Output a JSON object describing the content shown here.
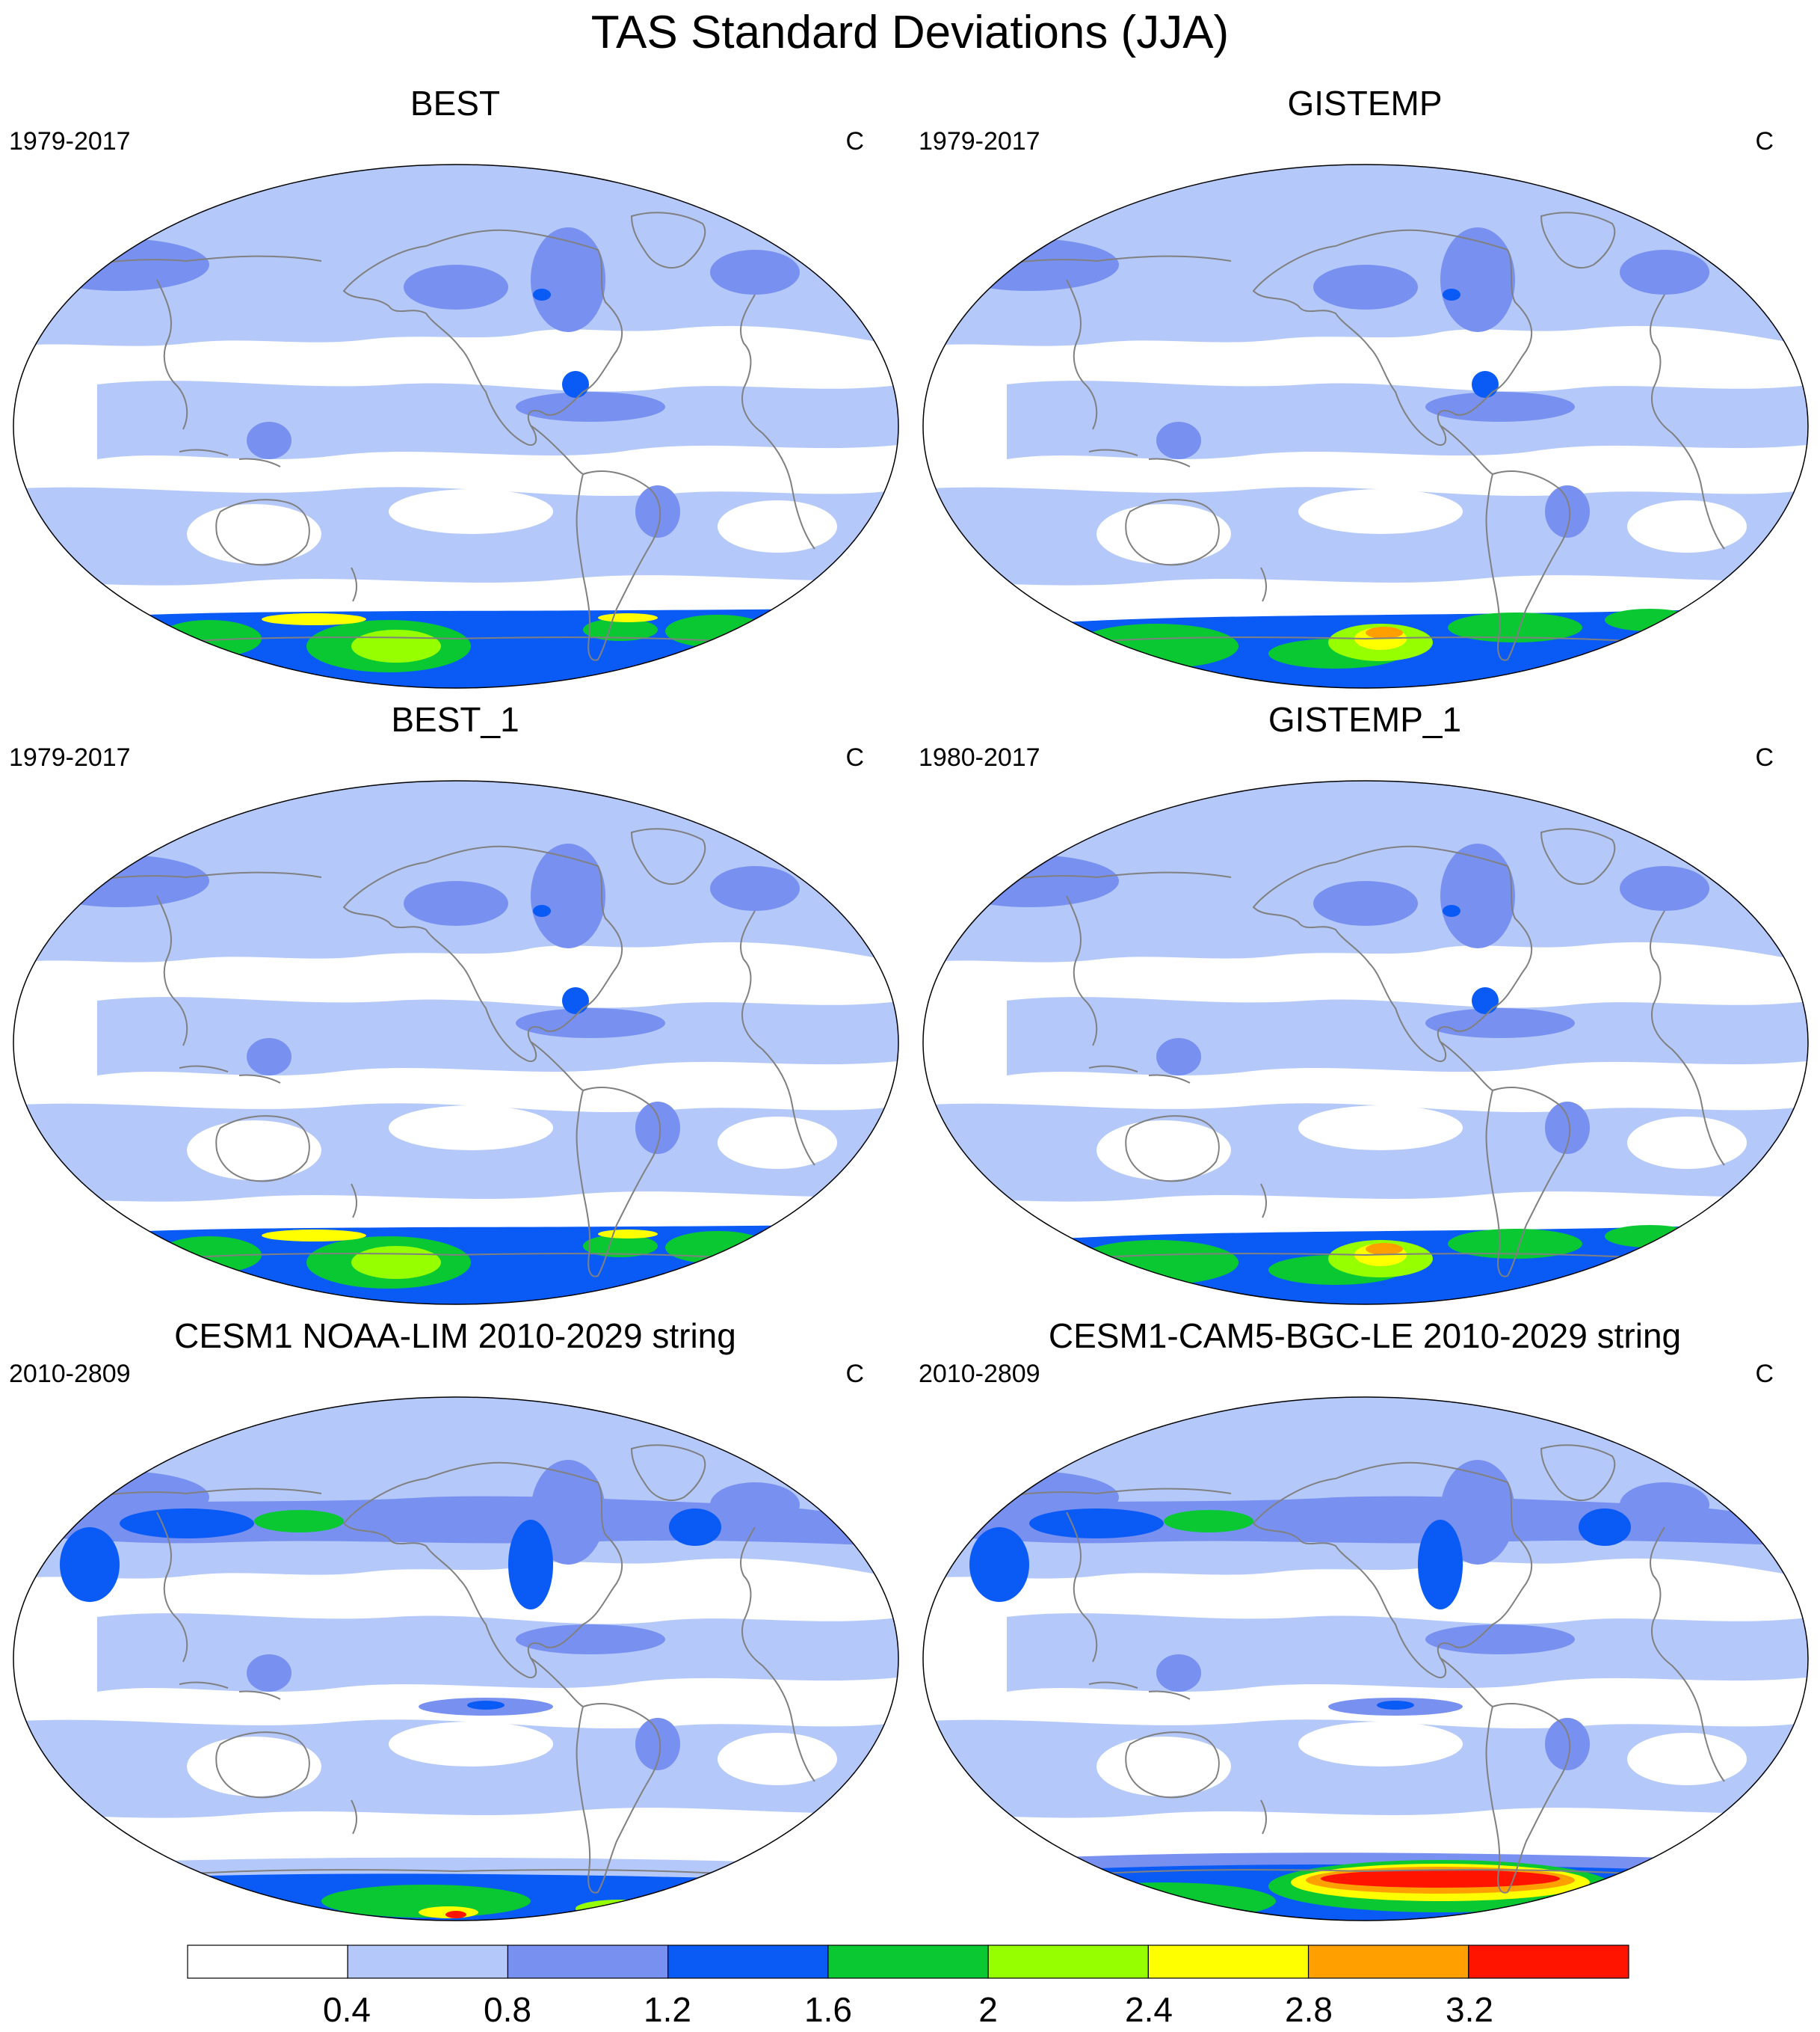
{
  "figure": {
    "title": "TAS Standard Deviations (JJA)"
  },
  "panels": [
    {
      "title": "BEST",
      "period": "1979-2017",
      "units": "C",
      "variant": "obs-best"
    },
    {
      "title": "GISTEMP",
      "period": "1979-2017",
      "units": "C",
      "variant": "obs-gis"
    },
    {
      "title": "BEST_1",
      "period": "1979-2017",
      "units": "C",
      "variant": "obs-best"
    },
    {
      "title": "GISTEMP_1",
      "period": "1980-2017",
      "units": "C",
      "variant": "obs-gis"
    },
    {
      "title": "CESM1 NOAA-LIM 2010-2029 string",
      "period": "2010-2809",
      "units": "C",
      "variant": "model-lim"
    },
    {
      "title": "CESM1-CAM5-BGC-LE 2010-2029 string",
      "period": "2010-2809",
      "units": "C",
      "variant": "model-le"
    }
  ],
  "colorbar": {
    "labels": [
      "0.4",
      "0.8",
      "1.2",
      "1.6",
      "2",
      "2.4",
      "2.8",
      "3.2"
    ],
    "colors": [
      "#ffffff",
      "#b4c8fa",
      "#7890f0",
      "#0a5af5",
      "#0ac832",
      "#96ff00",
      "#ffff00",
      "#ffa000",
      "#ff1400"
    ]
  },
  "colors": {
    "coastline": "#808080",
    "map_border": "#000000"
  }
}
